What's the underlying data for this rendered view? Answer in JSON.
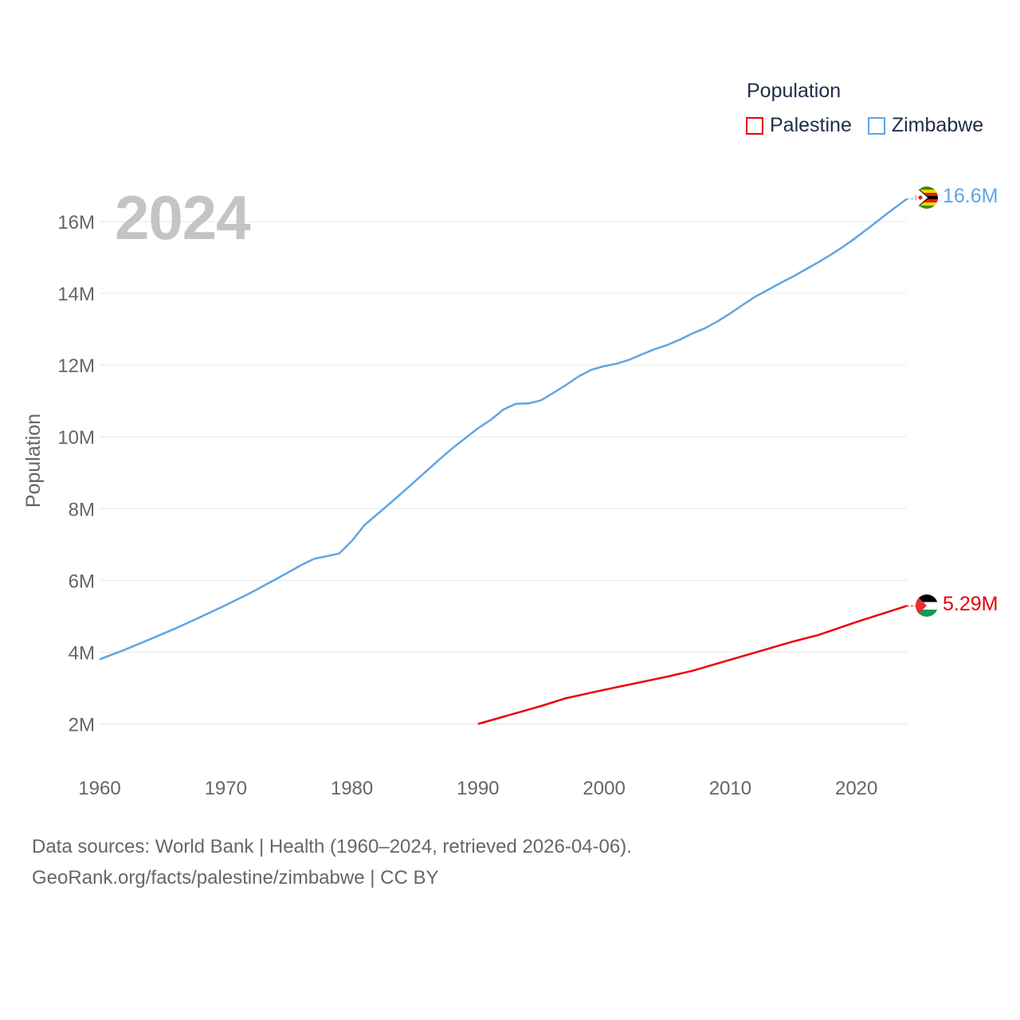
{
  "legend": {
    "title": "Population",
    "items": [
      {
        "label": "Palestine",
        "color": "#e8000b"
      },
      {
        "label": "Zimbabwe",
        "color": "#5fa5e5"
      }
    ]
  },
  "year_label": "2024",
  "footer": {
    "line1": "Data sources: World Bank | Health (1960–2024, retrieved 2026-04-06).",
    "line2": "GeoRank.org/facts/palestine/zimbabwe | CC BY"
  },
  "flags": [
    "zimbabwe-flag",
    "palestine-flag"
  ],
  "chart_data": {
    "type": "line",
    "title": "",
    "xlabel": "",
    "ylabel": "Population",
    "xlim": [
      1960,
      2024
    ],
    "ylim": [
      1000000,
      17500000
    ],
    "xticks": [
      1960,
      1970,
      1980,
      1990,
      2000,
      2010,
      2020
    ],
    "xtick_labels": [
      "1960",
      "1970",
      "1980",
      "1990",
      "2000",
      "2010",
      "2020"
    ],
    "yticks": [
      2000000,
      4000000,
      6000000,
      8000000,
      10000000,
      12000000,
      14000000,
      16000000
    ],
    "ytick_labels": [
      "2M",
      "4M",
      "6M",
      "8M",
      "10M",
      "12M",
      "14M",
      "16M"
    ],
    "grid": true,
    "series": [
      {
        "name": "Zimbabwe",
        "color": "#5fa5e5",
        "end_label": "16.6M",
        "x": [
          1960,
          1962,
          1964,
          1966,
          1968,
          1970,
          1972,
          1974,
          1976,
          1977,
          1979,
          1980,
          1981,
          1983,
          1985,
          1987,
          1988,
          1990,
          1991,
          1992,
          1993,
          1994,
          1995,
          1996,
          1997,
          1998,
          1999,
          2000,
          2001,
          2002,
          2003,
          2004,
          2005,
          2006,
          2007,
          2008,
          2009,
          2010,
          2011,
          2012,
          2013,
          2014,
          2015,
          2016,
          2017,
          2018,
          2019,
          2020,
          2021,
          2022,
          2023,
          2024
        ],
        "values": [
          3800000,
          4070000,
          4360000,
          4660000,
          4980000,
          5310000,
          5660000,
          6040000,
          6430000,
          6600000,
          6750000,
          7100000,
          7540000,
          8140000,
          8760000,
          9390000,
          9690000,
          10240000,
          10470000,
          10760000,
          10920000,
          10930000,
          11020000,
          11230000,
          11450000,
          11690000,
          11870000,
          11970000,
          12040000,
          12150000,
          12300000,
          12440000,
          12560000,
          12710000,
          12880000,
          13030000,
          13220000,
          13440000,
          13680000,
          13910000,
          14100000,
          14290000,
          14470000,
          14670000,
          14870000,
          15080000,
          15310000,
          15560000,
          15830000,
          16100000,
          16370000,
          16630000
        ]
      },
      {
        "name": "Palestine",
        "color": "#e8000b",
        "end_label": "5.29M",
        "x": [
          1990,
          1992,
          1995,
          1997,
          2000,
          2005,
          2007,
          2010,
          2015,
          2017,
          2020,
          2024
        ],
        "values": [
          2000000,
          2200000,
          2500000,
          2720000,
          2950000,
          3320000,
          3480000,
          3790000,
          4300000,
          4480000,
          4840000,
          5290000
        ]
      }
    ]
  }
}
